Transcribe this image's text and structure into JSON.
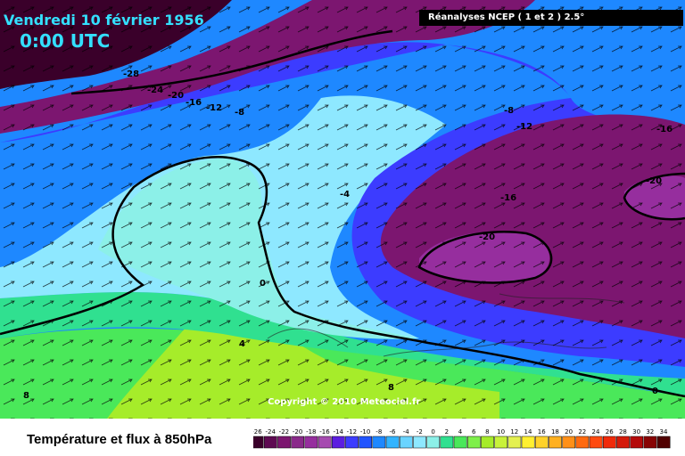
{
  "header": {
    "date": "Vendredi 10 février 1956",
    "time": "0:00 UTC",
    "source": "Réanalyses NCEP ( 1 et 2 ) 2.5°",
    "copyright": "Copyright © 2010 Meteociel.fr"
  },
  "footer": {
    "title": "Température et flux à 850hPa"
  },
  "legend": {
    "ticks": [
      "-26",
      "-24",
      "-22",
      "-20",
      "-18",
      "-16",
      "-14",
      "-12",
      "-10",
      "-8",
      "-6",
      "-4",
      "-2",
      "0",
      "2",
      "4",
      "6",
      "8",
      "10",
      "12",
      "14",
      "16",
      "18",
      "20",
      "22",
      "24",
      "26",
      "28",
      "30",
      "32",
      "34"
    ],
    "colors": [
      "#3a002a",
      "#5e0a52",
      "#7c1670",
      "#8a2a8a",
      "#962e9e",
      "#a64ab0",
      "#5c1ee0",
      "#3c3cff",
      "#2054ff",
      "#1e88ff",
      "#32b4ff",
      "#6ad4ff",
      "#8ee8ff",
      "#8cf0e8",
      "#30e090",
      "#4ae85a",
      "#7ef04a",
      "#a6ec2a",
      "#c8f23a",
      "#e4f050",
      "#fff030",
      "#ffd22a",
      "#ffb020",
      "#ff9018",
      "#ff6a10",
      "#ff4a10",
      "#f02a0a",
      "#d41a0a",
      "#b40a0a",
      "#880404",
      "#500000"
    ]
  },
  "contour_labels": [
    "-28",
    "-24",
    "-20",
    "-16",
    "-12",
    "-8",
    "-4",
    "0",
    "4",
    "-8",
    "-12",
    "-16",
    "-16",
    "-20",
    "-20",
    "0",
    "8",
    "8",
    "-8"
  ],
  "colors": {
    "title_cyan": "#33e0ff",
    "deep_purple": "#5e0a52",
    "blue": "#2054ff",
    "cyan": "#6ad4ff",
    "green": "#4ae85a",
    "yellow_green": "#a6ec2a"
  }
}
